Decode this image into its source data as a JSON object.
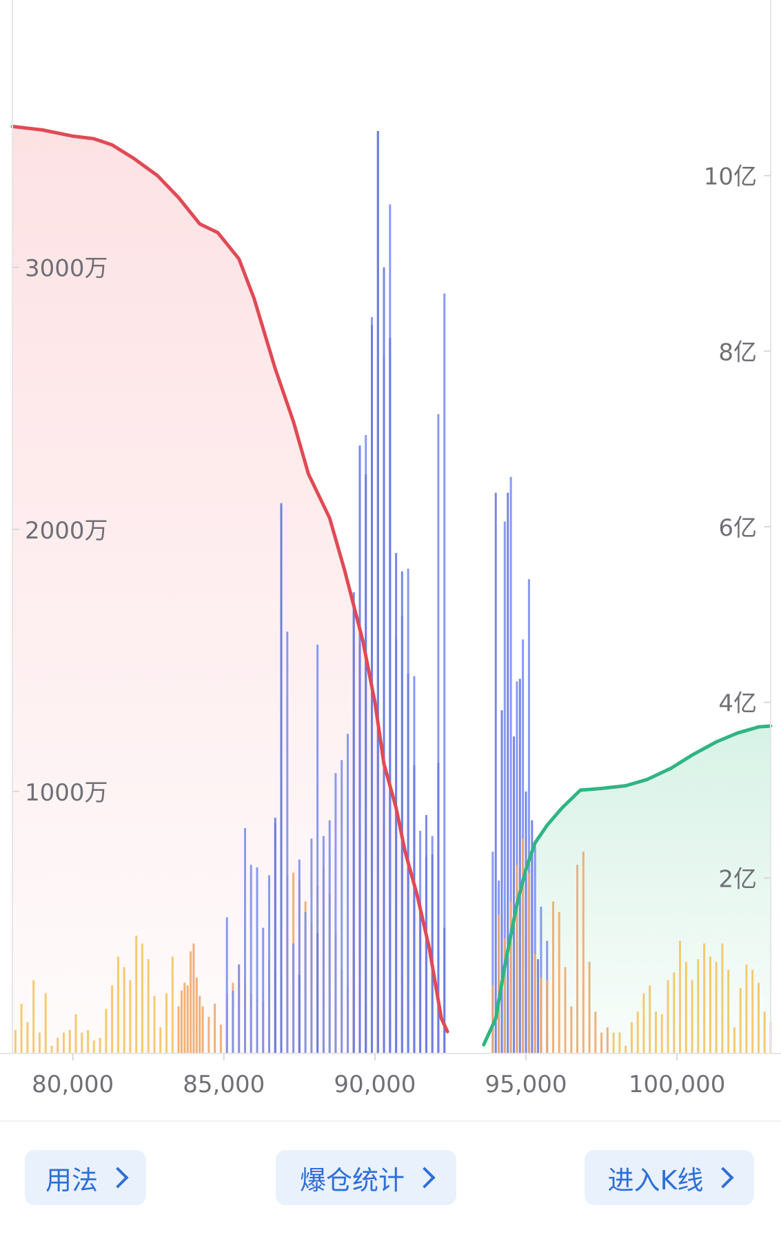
{
  "chart_data": {
    "type": "bar",
    "x_ticks": [
      "80,000",
      "85,000",
      "90,000",
      "95,000",
      "100,000"
    ],
    "x_tick_values": [
      80000,
      85000,
      90000,
      95000,
      100000
    ],
    "xlim": [
      78000,
      103100
    ],
    "left_axis": {
      "ticks": [
        "1000万",
        "2000万",
        "3000万"
      ],
      "tick_values": [
        10000000,
        20000000,
        30000000
      ],
      "ylim": [
        0,
        40200000
      ]
    },
    "right_axis": {
      "ticks": [
        "2亿",
        "4亿",
        "6亿",
        "8亿",
        "10亿"
      ],
      "tick_values": [
        200000000,
        400000000,
        600000000,
        800000000,
        1000000000
      ],
      "ylim": [
        0,
        1200000000
      ]
    },
    "cumulative_long": {
      "axis": "right",
      "color": "#e04a55",
      "fill": "#fde2e4",
      "points": [
        [
          78000,
          1056
        ],
        [
          79000,
          1052
        ],
        [
          80000,
          1045
        ],
        [
          80700,
          1042
        ],
        [
          81300,
          1035
        ],
        [
          82000,
          1020
        ],
        [
          82800,
          1000
        ],
        [
          83500,
          975
        ],
        [
          84200,
          945
        ],
        [
          84800,
          935
        ],
        [
          85500,
          905
        ],
        [
          86000,
          860
        ],
        [
          86700,
          780
        ],
        [
          87300,
          720
        ],
        [
          87800,
          660
        ],
        [
          88500,
          610
        ],
        [
          89000,
          550
        ],
        [
          89600,
          470
        ],
        [
          90000,
          400
        ],
        [
          90300,
          330
        ],
        [
          90700,
          280
        ],
        [
          91000,
          230
        ],
        [
          91400,
          180
        ],
        [
          91800,
          120
        ],
        [
          92000,
          80
        ],
        [
          92200,
          40
        ],
        [
          92400,
          25
        ]
      ]
    },
    "cumulative_short": {
      "axis": "right",
      "color": "#2fb584",
      "fill": "#d8f2e6",
      "points": [
        [
          93600,
          10
        ],
        [
          94000,
          40
        ],
        [
          94300,
          100
        ],
        [
          94700,
          170
        ],
        [
          95000,
          210
        ],
        [
          95300,
          240
        ],
        [
          95700,
          260
        ],
        [
          96200,
          280
        ],
        [
          96800,
          300
        ],
        [
          97500,
          302
        ],
        [
          98300,
          305
        ],
        [
          99000,
          312
        ],
        [
          99800,
          325
        ],
        [
          100500,
          340
        ],
        [
          101300,
          355
        ],
        [
          102000,
          365
        ],
        [
          102700,
          372
        ],
        [
          103100,
          373
        ]
      ]
    },
    "series": [
      {
        "name": "",
        "axis": "left",
        "color": "#f2c462",
        "x": [
          78100,
          78300,
          78500,
          78700,
          78900,
          79100,
          79300,
          79500,
          79700,
          79900,
          80100,
          80300,
          80500,
          80700,
          80900,
          81100,
          81300,
          81500,
          81700,
          81900,
          82100,
          82300,
          82500,
          82700,
          82900,
          83100,
          83300
        ],
        "values": [
          900,
          1900,
          1200,
          2800,
          800,
          2300,
          300,
          600,
          800,
          900,
          1500,
          800,
          900,
          500,
          600,
          1700,
          2600,
          3700,
          3300,
          2800,
          4500,
          4200,
          3600,
          2200,
          1000,
          2300,
          3700
        ]
      },
      {
        "name": "",
        "axis": "left",
        "color": "#f0a868",
        "x": [
          83500,
          83600,
          83700,
          83800,
          83900,
          84000,
          84100,
          84200,
          84300,
          84500,
          84700,
          84900,
          85100,
          85300,
          85500,
          85700,
          85900,
          86100,
          86300,
          86500,
          86700,
          86900,
          87100,
          87300,
          87500,
          87700,
          87900,
          88100,
          88300,
          88500,
          88700,
          88900,
          89100,
          89300,
          89500,
          89700,
          89900,
          90100,
          90300,
          90500
        ],
        "values": [
          1800,
          2400,
          2700,
          2600,
          3900,
          4200,
          2900,
          2200,
          1800,
          1400,
          1900,
          1100,
          2300,
          2700,
          3400,
          2600,
          2300,
          2100,
          2000,
          3600,
          3100,
          4700,
          6800,
          6900,
          6600,
          5800,
          5000,
          6400,
          7100,
          6100,
          4600,
          3200,
          2600,
          3800,
          2300,
          1900,
          2800,
          3600,
          1900,
          1300
        ]
      },
      {
        "name": "",
        "axis": "left",
        "color": "#7b8ff0",
        "x": [
          85100,
          85300,
          85500,
          85700,
          85900,
          86100,
          86300,
          86500,
          86700,
          86900,
          87100,
          87300,
          87500,
          87700,
          87900,
          88100,
          88300,
          88500,
          88700,
          88900,
          89100,
          89300,
          89500,
          89700,
          89900,
          90100,
          90300,
          90500,
          90700,
          90900,
          91100,
          91300,
          91500,
          91700,
          91900,
          92100,
          92300
        ],
        "values": [
          5200,
          2400,
          3400,
          8600,
          7200,
          7100,
          4800,
          6800,
          8800,
          20900,
          16100,
          4200,
          7400,
          5400,
          8200,
          15600,
          8300,
          8900,
          10700,
          11200,
          12200,
          17000,
          15600,
          23600,
          28100,
          35200,
          26600,
          32400,
          15800,
          16700,
          18500,
          14400,
          8500,
          7500,
          8300,
          24400,
          29000
        ]
      },
      {
        "name": "",
        "axis": "left",
        "color": "#6a7ae0",
        "x": [
          86700,
          86900,
          87500,
          88100,
          89300,
          89500,
          89700,
          89900,
          90100,
          90300,
          90500,
          90700,
          90900,
          91100,
          91300,
          91500,
          91700,
          91900,
          92100,
          92300
        ],
        "values": [
          9000,
          21000,
          3000,
          4600,
          17600,
          23200,
          22100,
          27800,
          35200,
          30000,
          27300,
          19100,
          18400,
          14500,
          11000,
          5500,
          9100,
          7600,
          11100,
          4800
        ]
      },
      {
        "name": "",
        "axis": "left",
        "color": "#7b8ff0",
        "x": [
          93900,
          94100,
          94300,
          94500,
          94700,
          94900,
          95100,
          95300,
          95500,
          95700
        ],
        "values": [
          7700,
          6600,
          20300,
          22000,
          14200,
          15800,
          18100,
          7900,
          5600,
          4300
        ]
      },
      {
        "name": "",
        "axis": "left",
        "color": "#6a7ae0",
        "x": [
          94000,
          94200,
          94400,
          94600,
          94800,
          95000,
          95200,
          95400
        ],
        "values": [
          21400,
          13100,
          21400,
          12100,
          14300,
          10000,
          8900,
          3600
        ]
      },
      {
        "name": "",
        "axis": "left",
        "color": "#f0a868",
        "x": [
          93900,
          94100,
          94300,
          94500,
          94700,
          94900,
          95100,
          95300,
          95500,
          95700,
          95900,
          96100,
          96300,
          96500,
          96700,
          96900,
          97100,
          97300,
          97500,
          97700
        ],
        "values": [
          2600,
          5300,
          4400,
          5800,
          7200,
          8200,
          6900,
          3800,
          2900,
          2800,
          5800,
          5400,
          3300,
          1800,
          7200,
          7700,
          3500,
          1600,
          800,
          1000
        ]
      },
      {
        "name": "",
        "axis": "left",
        "color": "#f2c462",
        "x": [
          97900,
          98100,
          98300,
          98500,
          98700,
          98900,
          99100,
          99300,
          99500,
          99700,
          99900,
          100100,
          100300,
          100500,
          100700,
          100900,
          101100,
          101300,
          101500,
          101700,
          101900,
          102100,
          102300,
          102500,
          102700,
          102900,
          103100
        ],
        "values": [
          800,
          800,
          300,
          1200,
          1600,
          2300,
          2600,
          1600,
          1500,
          2800,
          3100,
          4300,
          3500,
          2800,
          3600,
          4200,
          3700,
          3500,
          4200,
          3200,
          1000,
          2500,
          3400,
          3200,
          2700,
          1600,
          1200
        ]
      }
    ]
  },
  "buttons": {
    "usage": "用法",
    "stats": "爆仓统计",
    "kline": "进入K线"
  }
}
